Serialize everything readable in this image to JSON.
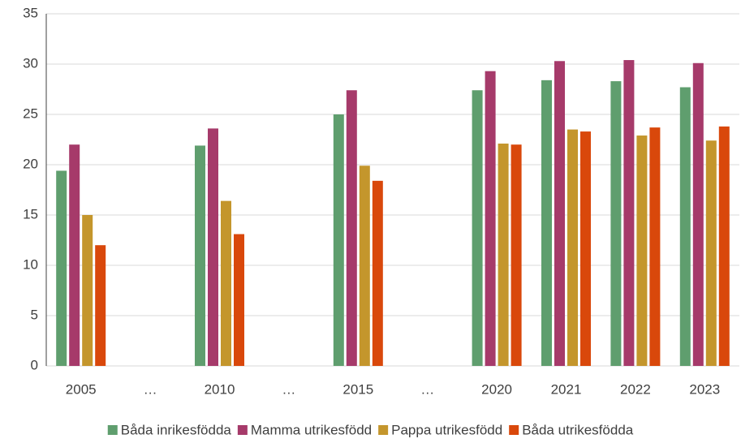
{
  "chart_data": {
    "type": "bar",
    "categories": [
      "2005",
      "…",
      "2010",
      "…",
      "2015",
      "…",
      "2020",
      "2021",
      "2022",
      "2023"
    ],
    "series": [
      {
        "name": "Båda inrikesfödda",
        "color": "#5f9e6e",
        "values": [
          19.4,
          null,
          21.9,
          null,
          25.0,
          null,
          27.4,
          28.4,
          28.3,
          27.7
        ]
      },
      {
        "name": "Mamma utrikesfödd",
        "color": "#a63a6a",
        "values": [
          22.0,
          null,
          23.6,
          null,
          27.4,
          null,
          29.3,
          30.3,
          30.4,
          30.1
        ]
      },
      {
        "name": "Pappa utrikesfödd",
        "color": "#c4962c",
        "values": [
          15.0,
          null,
          16.4,
          null,
          19.9,
          null,
          22.1,
          23.5,
          22.9,
          22.4
        ]
      },
      {
        "name": "Båda utrikesfödda",
        "color": "#d9480b",
        "values": [
          12.0,
          null,
          13.1,
          null,
          18.4,
          null,
          22.0,
          23.3,
          23.7,
          23.8
        ]
      }
    ],
    "ylim": [
      0,
      35
    ],
    "yticks": [
      0,
      5,
      10,
      15,
      20,
      25,
      30,
      35
    ],
    "grid": true,
    "legend": "bottom"
  }
}
